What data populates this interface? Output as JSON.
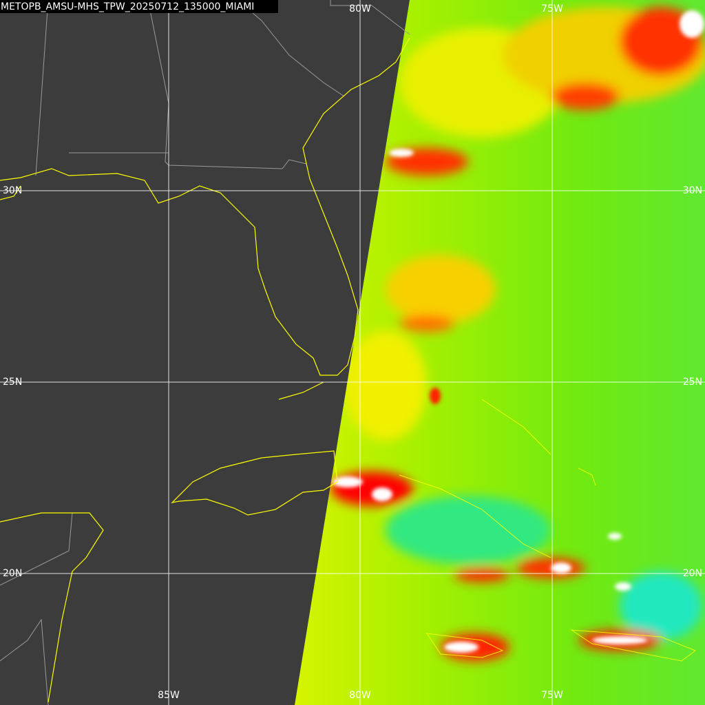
{
  "title": "METOPB_AMSU-MHS_TPW_20250712_135000_MIAMI",
  "grid_labels": {
    "top": [
      "80W",
      "75W"
    ],
    "bottom": [
      "85W",
      "80W",
      "75W"
    ],
    "left": [
      "30N",
      "25N",
      "20N"
    ],
    "right": [
      "30N",
      "25N",
      "20N"
    ]
  }
}
